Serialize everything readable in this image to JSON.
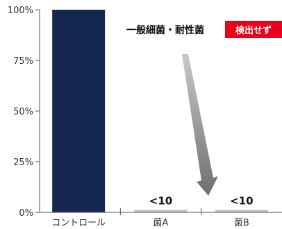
{
  "chart_data": {
    "type": "bar",
    "categories": [
      "コントロール",
      "菌A",
      "菌B"
    ],
    "values": [
      100,
      1.2,
      1.2
    ],
    "data_labels": [
      "",
      "<10",
      "<10"
    ],
    "y_ticks": [
      "0%",
      "25%",
      "50%",
      "75%",
      "100%"
    ],
    "ylim": [
      0,
      100
    ],
    "title": "",
    "xlabel": "",
    "ylabel": "",
    "grid": false,
    "annotation": {
      "text": "一般細菌・耐性菌",
      "badge": "検出せず"
    },
    "colors": {
      "control_bar": "#14284f",
      "bacteria_bar": "#b9c2cc",
      "badge": "#e8001c",
      "arrow_dark": "#6f6f6f",
      "arrow_light": "#c8c8c8",
      "axis": "#555555"
    }
  }
}
